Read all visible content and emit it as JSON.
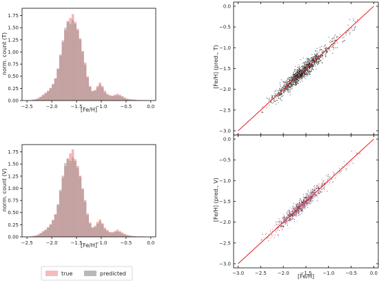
{
  "legend": {
    "true_label": "true",
    "predicted_label": "predicted"
  },
  "colors": {
    "true": "#f2a4a4",
    "predicted": "#8a8a8a",
    "fit_line": "#e8262a",
    "points_top": "#1a1a1a",
    "points_bottom_a": "#e87ab0",
    "points_bottom_b": "#333333",
    "axis": "#000000"
  },
  "chart_data": [
    {
      "type": "bar",
      "panel": "histogram-training",
      "xlabel": "[Fe/H]",
      "ylabel": "norm. count (T)",
      "xlim": [
        -2.6,
        0.1
      ],
      "ylim": [
        0,
        1.9
      ],
      "xticks": [
        "-2.5",
        "-2.0",
        "-1.5",
        "-1.0",
        "-0.5",
        "0.0"
      ],
      "yticks": [
        "0.00",
        "0.25",
        "0.50",
        "0.75",
        "1.00",
        "1.25",
        "1.50",
        "1.75"
      ],
      "bin_centers": [
        -2.425,
        -2.375,
        -2.325,
        -2.275,
        -2.225,
        -2.175,
        -2.125,
        -2.075,
        -2.025,
        -1.975,
        -1.925,
        -1.875,
        -1.825,
        -1.775,
        -1.725,
        -1.675,
        -1.625,
        -1.575,
        -1.525,
        -1.475,
        -1.425,
        -1.375,
        -1.325,
        -1.275,
        -1.225,
        -1.175,
        -1.125,
        -1.075,
        -1.025,
        -0.975,
        -0.925,
        -0.875,
        -0.825,
        -0.775,
        -0.725,
        -0.675,
        -0.625,
        -0.575,
        -0.525,
        -0.475,
        -0.425,
        -0.375,
        -0.325,
        -0.275,
        -0.225,
        -0.175,
        -0.125,
        -0.075
      ],
      "series": [
        {
          "name": "true",
          "values": [
            0.01,
            0.02,
            0.03,
            0.05,
            0.08,
            0.12,
            0.16,
            0.2,
            0.26,
            0.34,
            0.46,
            0.65,
            0.92,
            1.2,
            1.45,
            1.64,
            1.7,
            1.78,
            1.62,
            1.48,
            1.28,
            1.02,
            0.78,
            0.5,
            0.3,
            0.2,
            0.22,
            0.3,
            0.37,
            0.3,
            0.2,
            0.14,
            0.11,
            0.1,
            0.12,
            0.14,
            0.12,
            0.09,
            0.06,
            0.04,
            0.03,
            0.02,
            0.02,
            0.01,
            0.01,
            0.01,
            0.005,
            0.003
          ]
        },
        {
          "name": "predicted",
          "values": [
            0.0,
            0.01,
            0.02,
            0.04,
            0.07,
            0.11,
            0.15,
            0.19,
            0.25,
            0.33,
            0.45,
            0.66,
            0.95,
            1.24,
            1.5,
            1.62,
            1.58,
            1.66,
            1.58,
            1.44,
            1.26,
            1.0,
            0.74,
            0.47,
            0.28,
            0.19,
            0.2,
            0.27,
            0.33,
            0.27,
            0.17,
            0.12,
            0.1,
            0.09,
            0.1,
            0.11,
            0.1,
            0.08,
            0.05,
            0.03,
            0.02,
            0.02,
            0.01,
            0.01,
            0.005,
            0.003,
            0.002,
            0.001
          ]
        }
      ]
    },
    {
      "type": "bar",
      "panel": "histogram-validation",
      "xlabel": "[Fe/H]",
      "ylabel": "norm. count (V)",
      "xlim": [
        -2.6,
        0.1
      ],
      "ylim": [
        0,
        1.9
      ],
      "xticks": [
        "-2.5",
        "-2.0",
        "-1.5",
        "-1.0",
        "-0.5",
        "0.0"
      ],
      "yticks": [
        "0.00",
        "0.25",
        "0.50",
        "0.75",
        "1.00",
        "1.25",
        "1.50",
        "1.75"
      ],
      "bin_centers": [
        -2.425,
        -2.375,
        -2.325,
        -2.275,
        -2.225,
        -2.175,
        -2.125,
        -2.075,
        -2.025,
        -1.975,
        -1.925,
        -1.875,
        -1.825,
        -1.775,
        -1.725,
        -1.675,
        -1.625,
        -1.575,
        -1.525,
        -1.475,
        -1.425,
        -1.375,
        -1.325,
        -1.275,
        -1.225,
        -1.175,
        -1.125,
        -1.075,
        -1.025,
        -0.975,
        -0.925,
        -0.875,
        -0.825,
        -0.775,
        -0.725,
        -0.675,
        -0.625,
        -0.575,
        -0.525,
        -0.475,
        -0.425,
        -0.375,
        -0.325,
        -0.275,
        -0.225,
        -0.175,
        -0.125,
        -0.075
      ],
      "series": [
        {
          "name": "true",
          "values": [
            0.01,
            0.02,
            0.03,
            0.05,
            0.08,
            0.12,
            0.15,
            0.2,
            0.26,
            0.35,
            0.47,
            0.66,
            0.94,
            1.22,
            1.46,
            1.62,
            1.72,
            1.8,
            1.6,
            1.46,
            1.26,
            1.0,
            0.76,
            0.48,
            0.3,
            0.2,
            0.23,
            0.31,
            0.36,
            0.28,
            0.19,
            0.14,
            0.1,
            0.1,
            0.12,
            0.15,
            0.12,
            0.09,
            0.06,
            0.04,
            0.03,
            0.02,
            0.015,
            0.01,
            0.01,
            0.01,
            0.005,
            0.003
          ]
        },
        {
          "name": "predicted",
          "values": [
            0.0,
            0.01,
            0.02,
            0.04,
            0.07,
            0.1,
            0.14,
            0.19,
            0.25,
            0.34,
            0.46,
            0.67,
            0.97,
            1.26,
            1.52,
            1.6,
            1.56,
            1.64,
            1.56,
            1.42,
            1.24,
            0.98,
            0.72,
            0.45,
            0.27,
            0.18,
            0.2,
            0.27,
            0.32,
            0.26,
            0.16,
            0.12,
            0.09,
            0.08,
            0.1,
            0.11,
            0.1,
            0.07,
            0.05,
            0.03,
            0.02,
            0.015,
            0.01,
            0.008,
            0.005,
            0.003,
            0.002,
            0.001
          ]
        }
      ]
    },
    {
      "type": "scatter",
      "panel": "scatter-training",
      "ylabel": "[Fe/H] (pred., T)",
      "xlim": [
        -3.1,
        0.1
      ],
      "ylim": [
        -3.1,
        0.1
      ],
      "yticks": [
        "0.0",
        "-0.5",
        "-1.0",
        "-1.5",
        "-2.0",
        "-2.5",
        "-3.0"
      ],
      "line": {
        "x": [
          -3.0,
          0.0
        ],
        "y": [
          -3.0,
          0.0
        ]
      },
      "cloud": {
        "center": -1.6,
        "sd_true": 0.28,
        "sd_scatter": 0.09,
        "x_range": [
          -2.5,
          -0.35
        ],
        "n_points": 1300
      }
    },
    {
      "type": "scatter",
      "panel": "scatter-validation",
      "xlabel": "[Fe/H]",
      "ylabel": "[Fe/H] (pred., V)",
      "xlim": [
        -3.1,
        0.1
      ],
      "ylim": [
        -3.1,
        0.1
      ],
      "xticks": [
        "-3.0",
        "-2.5",
        "-2.0",
        "-1.5",
        "-1.0",
        "-0.5",
        "0.0"
      ],
      "yticks": [
        "0.0",
        "-0.5",
        "-1.0",
        "-1.5",
        "-2.0",
        "-2.5",
        "-3.0"
      ],
      "line": {
        "x": [
          -3.0,
          0.0
        ],
        "y": [
          -3.0,
          0.0
        ]
      },
      "cloud": {
        "center": -1.6,
        "sd_true": 0.27,
        "sd_scatter": 0.08,
        "x_range": [
          -2.5,
          -0.3
        ],
        "n_points": 1100
      }
    }
  ]
}
